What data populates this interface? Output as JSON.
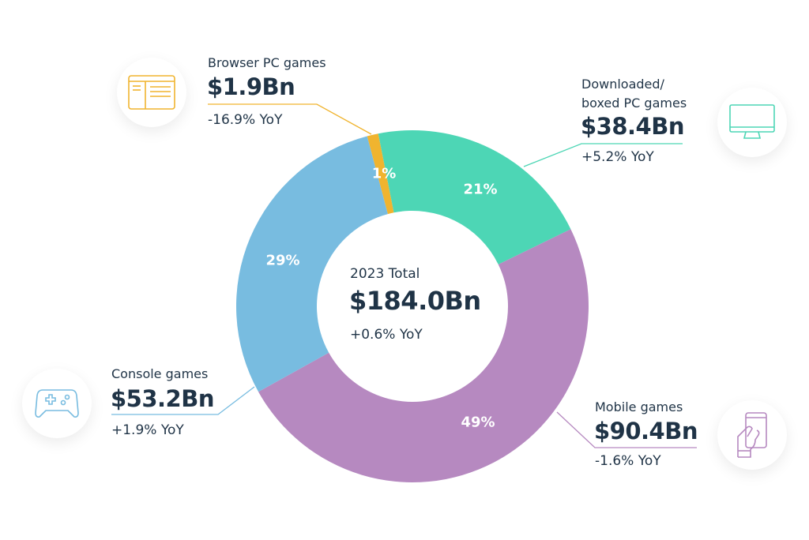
{
  "chart_data": {
    "type": "pie",
    "variant": "donut",
    "center": {
      "title": "2023 Total",
      "value": "$184.0Bn",
      "yoy": "+0.6% YoY"
    },
    "segments": [
      {
        "name": "Browser PC games",
        "value": 1.9,
        "value_label": "$1.9Bn",
        "percent_label": "1%",
        "yoy": "-16.9% YoY",
        "color": "#f0b42f",
        "icon": "browser-window-icon"
      },
      {
        "name": "Downloaded/ boxed PC games",
        "name_lines": [
          "Downloaded/",
          "boxed PC games"
        ],
        "value": 38.4,
        "value_label": "$38.4Bn",
        "percent_label": "21%",
        "yoy": "+5.2% YoY",
        "color": "#4dd6b5",
        "icon": "desktop-monitor-icon"
      },
      {
        "name": "Mobile games",
        "value": 90.4,
        "value_label": "$90.4Bn",
        "percent_label": "49%",
        "yoy": "-1.6% YoY",
        "color": "#b689c0",
        "icon": "hand-holding-phone-icon"
      },
      {
        "name": "Console games",
        "value": 53.2,
        "value_label": "$53.2Bn",
        "percent_label": "29%",
        "yoy": "+1.9% YoY",
        "color": "#78bce0",
        "icon": "gamepad-icon"
      }
    ],
    "legend": "callouts"
  }
}
